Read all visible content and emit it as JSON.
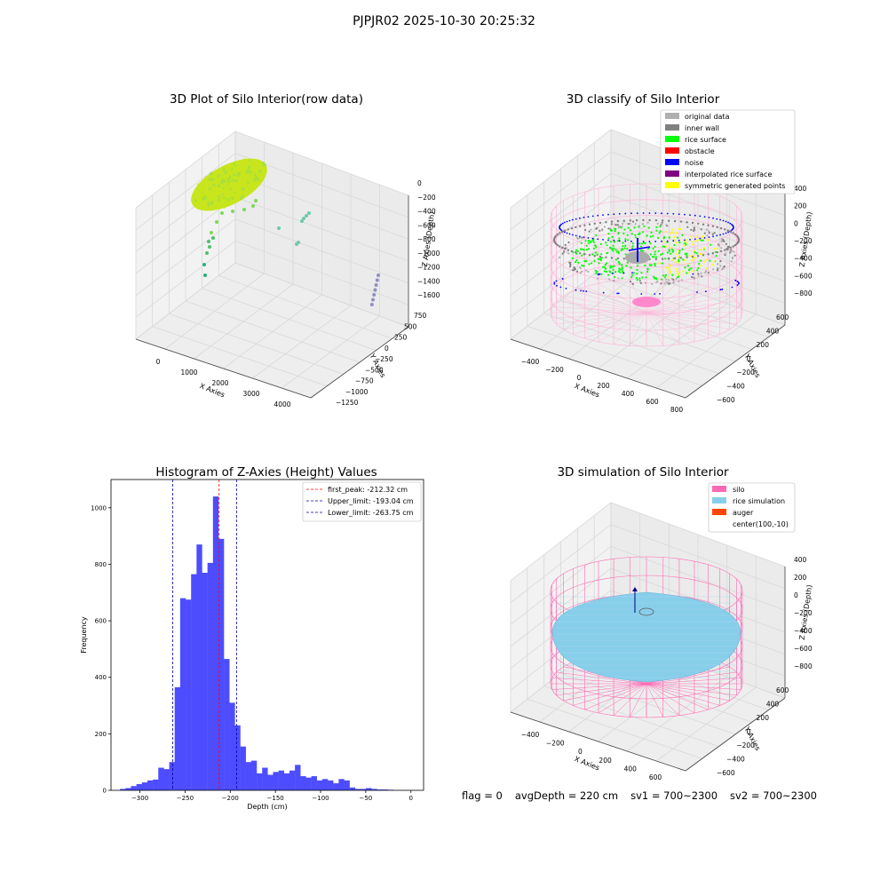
{
  "figure_title": "PJPJR02 2025-10-30 20:25:32",
  "footer": {
    "flag": "flag = 0",
    "avg_depth": "avgDepth = 220 cm",
    "sv1": "sv1 = 700~2300",
    "sv2": "sv2 = 700~2300"
  },
  "chart_data": [
    {
      "type": "scatter",
      "title": "3D Plot of Silo Interior(row data)",
      "xlabel": "X Axies",
      "ylabel": "Y Axies",
      "zlabel": "Z Axies (Depth)",
      "x_ticks": [
        "0",
        "1000",
        "2000",
        "3000",
        "4000"
      ],
      "y_ticks": [
        "750",
        "500",
        "250",
        "0",
        "−250",
        "−500",
        "−750",
        "−1000",
        "−1250"
      ],
      "z_ticks": [
        "0",
        "−200",
        "−400",
        "−600",
        "−800",
        "−1000",
        "−1200",
        "−1400",
        "−1600"
      ],
      "xlim": [
        -500,
        4500
      ],
      "ylim": [
        -1250,
        750
      ],
      "zlim": [
        -1700,
        0
      ],
      "colors": [
        "#c8e51d",
        "#7ed957",
        "#4fc06a",
        "#28b07a",
        "#6fc9a8",
        "#8f8fc3"
      ]
    },
    {
      "type": "scatter",
      "title": "3D classify of Silo Interior",
      "xlabel": "X Axies",
      "ylabel": "Y Axies",
      "zlabel": "Z Axies (Depth)",
      "x_ticks": [
        "−400",
        "−200",
        "0",
        "200",
        "400",
        "600",
        "800"
      ],
      "y_ticks": [
        "600",
        "400",
        "200",
        "0",
        "−200",
        "−400",
        "−600"
      ],
      "z_ticks": [
        "400",
        "200",
        "0",
        "−200",
        "−400",
        "−600",
        "−800"
      ],
      "legend": [
        {
          "label": "original data",
          "color": "#b0b0b0"
        },
        {
          "label": "inner wall",
          "color": "#808080"
        },
        {
          "label": "rice surface",
          "color": "#00ff00"
        },
        {
          "label": "obstacle",
          "color": "#ff0000"
        },
        {
          "label": "noise",
          "color": "#0000ff"
        },
        {
          "label": "interpolated rice surface",
          "color": "#800080"
        },
        {
          "label": "symmetric generated points",
          "color": "#ffff00"
        }
      ],
      "legend_placement": "upper-right"
    },
    {
      "type": "bar",
      "title": "Histogram of Z-Axies (Height) Values",
      "xlabel": "Depth (cm)",
      "ylabel": "Frequency",
      "xlim": [
        -332,
        14
      ],
      "ylim": [
        0,
        1100
      ],
      "x_ticks": [
        -300,
        -250,
        -200,
        -150,
        -100,
        -50,
        0
      ],
      "y_ticks": [
        0,
        200,
        400,
        600,
        800,
        1000
      ],
      "bin_width": 6.05,
      "bin_start": -322,
      "values": [
        5,
        8,
        15,
        22,
        28,
        35,
        38,
        80,
        75,
        100,
        365,
        680,
        675,
        765,
        870,
        770,
        805,
        1040,
        890,
        465,
        310,
        230,
        155,
        100,
        105,
        60,
        80,
        55,
        65,
        70,
        60,
        70,
        90,
        50,
        45,
        50,
        35,
        40,
        35,
        25,
        40,
        35,
        10,
        5,
        5,
        8,
        5,
        3,
        3,
        2
      ],
      "bar_color": "#4d4dff",
      "reference_lines": [
        {
          "label": "first_peak: -212.32 cm",
          "value": -212.32,
          "color": "#ff0000"
        },
        {
          "label": "Upper_limit: -193.04 cm",
          "value": -193.04,
          "color": "#0000aa"
        },
        {
          "label": "Lower_limit: -263.75 cm",
          "value": -263.75,
          "color": "#0000aa"
        }
      ],
      "legend_placement": "upper-right"
    },
    {
      "type": "scatter",
      "title": "3D simulation of Silo Interior",
      "xlabel": "X Axies",
      "ylabel": "Y Axies",
      "zlabel": "Z Axies (Depth)",
      "x_ticks": [
        "−400",
        "−200",
        "0",
        "200",
        "400",
        "600"
      ],
      "y_ticks": [
        "600",
        "400",
        "200",
        "0",
        "−200",
        "−400",
        "−600"
      ],
      "z_ticks": [
        "400",
        "200",
        "0",
        "−200",
        "−400",
        "−600",
        "−800"
      ],
      "legend": [
        {
          "label": "silo",
          "color": "#ff69b4"
        },
        {
          "label": "rice simulation",
          "color": "#87ceeb"
        },
        {
          "label": "auger",
          "color": "#ff4500"
        },
        {
          "label": "center(100,-10)",
          "color": ""
        }
      ],
      "legend_placement": "upper-right"
    }
  ]
}
